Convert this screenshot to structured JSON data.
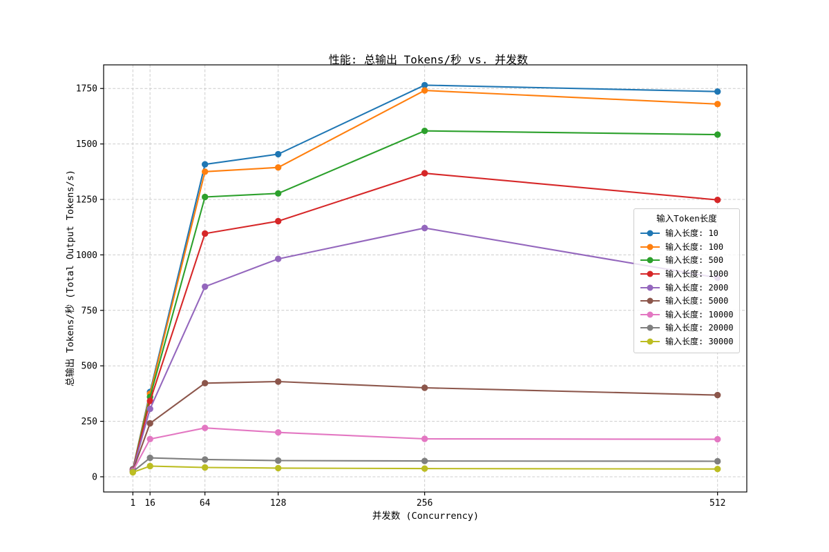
{
  "chart_data": {
    "type": "line",
    "title": "性能: 总输出 Tokens/秒 vs. 并发数",
    "xlabel": "并发数 (Concurrency)",
    "ylabel": "总输出 Tokens/秒 (Total Output Tokens/s)",
    "x": [
      1,
      16,
      64,
      128,
      256,
      512
    ],
    "x_tick_labels": [
      "1",
      "16",
      "64",
      "128",
      "256",
      "512"
    ],
    "y_ticks": [
      0,
      250,
      500,
      750,
      1000,
      1250,
      1500,
      1750
    ],
    "y_tick_labels": [
      "0",
      "250",
      "500",
      "750",
      "1000",
      "1250",
      "1500",
      "1750"
    ],
    "xlim": [
      -24.55,
      537.55
    ],
    "ylim": [
      -68.5,
      1856.5
    ],
    "grid": true,
    "legend": {
      "title": "输入Token长度",
      "position": "center-right"
    },
    "series": [
      {
        "name": "输入长度: 10",
        "color": "#1f77b4",
        "values": [
          34,
          382,
          1408,
          1454,
          1765,
          1736
        ]
      },
      {
        "name": "输入长度: 100",
        "color": "#ff7f0e",
        "values": [
          33,
          374,
          1375,
          1394,
          1741,
          1680
        ]
      },
      {
        "name": "输入长度: 500",
        "color": "#2ca02c",
        "values": [
          33,
          360,
          1261,
          1277,
          1559,
          1542
        ]
      },
      {
        "name": "输入长度: 1000",
        "color": "#d62728",
        "values": [
          32,
          342,
          1096,
          1152,
          1368,
          1248
        ]
      },
      {
        "name": "输入长度: 2000",
        "color": "#9467bd",
        "values": [
          30,
          306,
          857,
          982,
          1121,
          897
        ]
      },
      {
        "name": "输入长度: 5000",
        "color": "#8c564b",
        "values": [
          28,
          241,
          422,
          429,
          401,
          368
        ]
      },
      {
        "name": "输入长度: 10000",
        "color": "#e377c2",
        "values": [
          26,
          170,
          220,
          200,
          171,
          169
        ]
      },
      {
        "name": "输入长度: 20000",
        "color": "#7f7f7f",
        "values": [
          23,
          85,
          78,
          73,
          71,
          70
        ]
      },
      {
        "name": "输入长度: 30000",
        "color": "#bcbd22",
        "values": [
          20,
          48,
          42,
          39,
          37,
          35
        ]
      }
    ]
  }
}
